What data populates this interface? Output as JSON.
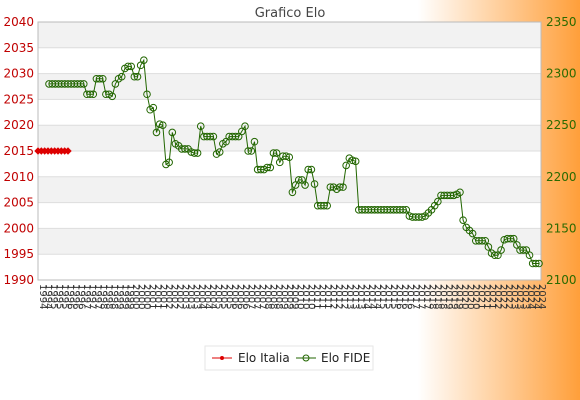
{
  "chart_data": {
    "type": "line",
    "title": "Grafico Elo",
    "colors": {
      "background_start": "#ffffff",
      "background_end": "#ff9f3a",
      "italia": "#dd0000",
      "fide": "#226600"
    },
    "y_left": {
      "min": 1990,
      "max": 2040,
      "ticks": [
        1990,
        1995,
        2000,
        2005,
        2010,
        2015,
        2020,
        2025,
        2030,
        2035,
        2040
      ]
    },
    "y_right": {
      "min": 2100,
      "max": 2350,
      "ticks": [
        2100,
        2150,
        2200,
        2250,
        2300,
        2350
      ]
    },
    "legend": {
      "placement": "bottom",
      "items": [
        "Elo Italia",
        "Elo FIDE"
      ]
    },
    "series": [
      {
        "name": "Elo Italia",
        "axis": "left",
        "values": [
          2015,
          2015,
          2015,
          2015,
          2015,
          2015,
          2015,
          2015,
          2015,
          2015
        ]
      },
      {
        "name": "Elo FIDE",
        "axis": "right",
        "values": [
          2290,
          2290,
          2290,
          2290,
          2290,
          2290,
          2290,
          2290,
          2290,
          2290,
          2290,
          2290,
          2280,
          2280,
          2280,
          2295,
          2295,
          2295,
          2280,
          2280,
          2278,
          2290,
          2295,
          2297,
          2305,
          2307,
          2307,
          2297,
          2297,
          2308,
          2313,
          2280,
          2265,
          2267,
          2243,
          2251,
          2250,
          2212,
          2214,
          2243,
          2232,
          2230,
          2227,
          2227,
          2227,
          2224,
          2223,
          2223,
          2249,
          2239,
          2239,
          2239,
          2239,
          2222,
          2224,
          2232,
          2234,
          2239,
          2239,
          2239,
          2239,
          2244,
          2249,
          2225,
          2225,
          2234,
          2207,
          2207,
          2207,
          2209,
          2209,
          2223,
          2223,
          2214,
          2220,
          2220,
          2219,
          2185,
          2192,
          2197,
          2197,
          2192,
          2207,
          2207,
          2193,
          2172,
          2172,
          2172,
          2172,
          2190,
          2190,
          2188,
          2190,
          2190,
          2211,
          2218,
          2216,
          2215,
          2168,
          2168,
          2168,
          2168,
          2168,
          2168,
          2168,
          2168,
          2168,
          2168,
          2168,
          2168,
          2168,
          2168,
          2168,
          2168,
          2162,
          2161,
          2161,
          2161,
          2161,
          2162,
          2165,
          2168,
          2172,
          2176,
          2182,
          2182,
          2182,
          2182,
          2182,
          2183,
          2185,
          2158,
          2151,
          2148,
          2145,
          2138,
          2138,
          2138,
          2138,
          2132,
          2126,
          2124,
          2124,
          2129,
          2139,
          2140,
          2140,
          2140,
          2134,
          2129,
          2129,
          2129,
          2124,
          2116,
          2116,
          2116
        ]
      }
    ],
    "x_labels": [
      "1994",
      "1994",
      "1995",
      "1995",
      "1995",
      "1996",
      "1996",
      "1996",
      "1997",
      "1997",
      "1997",
      "1998",
      "1998",
      "1998",
      "1999",
      "1999",
      "1999",
      "2000",
      "2000",
      "2000",
      "2001",
      "2001",
      "2001",
      "2002",
      "2002",
      "2002",
      "2003",
      "2003",
      "2003",
      "2004",
      "2004",
      "2004",
      "2005",
      "2005",
      "2005",
      "2006",
      "2006",
      "2006",
      "2007",
      "2007",
      "2007",
      "2008",
      "2008",
      "2008",
      "2009",
      "2009",
      "2009",
      "2010",
      "2010",
      "2010",
      "2011",
      "2011",
      "2011",
      "2012",
      "2012",
      "2012",
      "2013",
      "2013",
      "2013",
      "2014",
      "2014",
      "2014",
      "2015",
      "2015",
      "2015",
      "2016",
      "2016",
      "2016",
      "2017",
      "2017",
      "2017",
      "2018",
      "2018",
      "2018",
      "2019",
      "2019",
      "2019",
      "2020",
      "2020",
      "2020",
      "2021",
      "2021",
      "2021",
      "2022",
      "2022",
      "2022",
      "2023",
      "2023",
      "2023",
      "2024",
      "2024",
      "2024"
    ]
  }
}
